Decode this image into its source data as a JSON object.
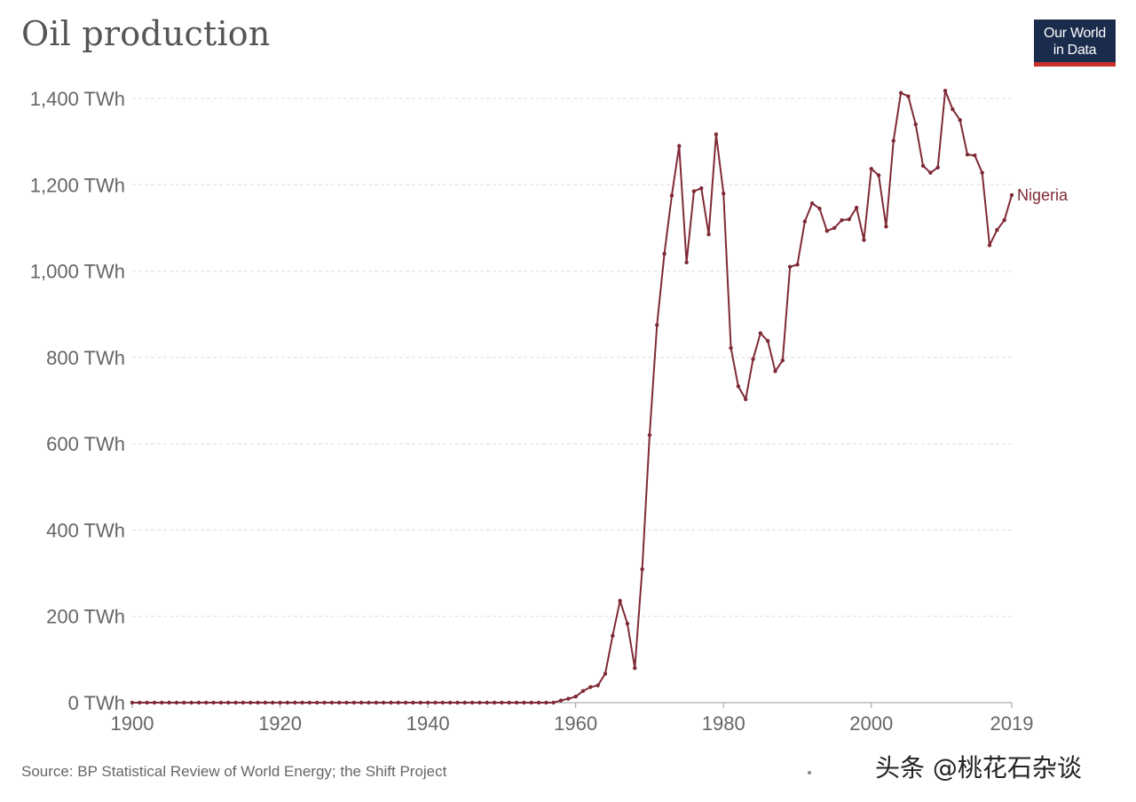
{
  "page": {
    "title": "Oil production",
    "logo_line1": "Our World",
    "logo_line2": "in Data",
    "source": "Source: BP Statistical Review of World Energy; the Shift Project",
    "watermark": "头条 @桃花石杂谈"
  },
  "colors": {
    "series": "#7f2a35",
    "grid": "#dddddd",
    "axis_text": "#666666",
    "logo_bg": "#1a2b4c",
    "logo_accent": "#c9302c"
  },
  "chart_data": {
    "type": "line",
    "title": "Oil production",
    "xlabel": "",
    "ylabel": "",
    "xlim": [
      1900,
      2019
    ],
    "ylim": [
      0,
      1400
    ],
    "grid": true,
    "x_ticks": [
      "1900",
      "1920",
      "1940",
      "1960",
      "1980",
      "2000",
      "2019"
    ],
    "y_ticks": [
      "0 TWh",
      "200 TWh",
      "400 TWh",
      "600 TWh",
      "800 TWh",
      "1,000 TWh",
      "1,200 TWh",
      "1,400 TWh"
    ],
    "series": [
      {
        "name": "Nigeria",
        "x": [
          1900,
          1901,
          1902,
          1903,
          1904,
          1905,
          1906,
          1907,
          1908,
          1909,
          1910,
          1911,
          1912,
          1913,
          1914,
          1915,
          1916,
          1917,
          1918,
          1919,
          1920,
          1921,
          1922,
          1923,
          1924,
          1925,
          1926,
          1927,
          1928,
          1929,
          1930,
          1931,
          1932,
          1933,
          1934,
          1935,
          1936,
          1937,
          1938,
          1939,
          1940,
          1941,
          1942,
          1943,
          1944,
          1945,
          1946,
          1947,
          1948,
          1949,
          1950,
          1951,
          1952,
          1953,
          1954,
          1955,
          1956,
          1957,
          1958,
          1959,
          1960,
          1961,
          1962,
          1963,
          1964,
          1965,
          1966,
          1967,
          1968,
          1969,
          1970,
          1971,
          1972,
          1973,
          1974,
          1975,
          1976,
          1977,
          1978,
          1979,
          1980,
          1981,
          1982,
          1983,
          1984,
          1985,
          1986,
          1987,
          1988,
          1989,
          1990,
          1991,
          1992,
          1993,
          1994,
          1995,
          1996,
          1997,
          1998,
          1999,
          2000,
          2001,
          2002,
          2003,
          2004,
          2005,
          2006,
          2007,
          2008,
          2009,
          2010,
          2011,
          2012,
          2013,
          2014,
          2015,
          2016,
          2017,
          2018,
          2019
        ],
        "y": [
          0,
          0,
          0,
          0,
          0,
          0,
          0,
          0,
          0,
          0,
          0,
          0,
          0,
          0,
          0,
          0,
          0,
          0,
          0,
          0,
          0,
          0,
          0,
          0,
          0,
          0,
          0,
          0,
          0,
          0,
          0,
          0,
          0,
          0,
          0,
          0,
          0,
          0,
          0,
          0,
          0,
          0,
          0,
          0,
          0,
          0,
          0,
          0,
          0,
          0,
          0,
          0,
          0,
          0,
          0,
          0,
          0,
          0,
          5,
          9,
          14,
          27,
          36,
          40,
          67,
          155,
          236,
          183,
          80,
          309,
          620,
          875,
          1040,
          1175,
          1290,
          1020,
          1185,
          1192,
          1085,
          1317,
          1180,
          822,
          733,
          703,
          796,
          856,
          838,
          768,
          793,
          1010,
          1015,
          1115,
          1157,
          1145,
          1093,
          1100,
          1118,
          1120,
          1147,
          1072,
          1237,
          1222,
          1103,
          1302,
          1413,
          1405,
          1340,
          1244,
          1228,
          1240,
          1418,
          1375,
          1350,
          1270,
          1268,
          1228,
          1060,
          1095,
          1118,
          1176
        ]
      }
    ]
  }
}
